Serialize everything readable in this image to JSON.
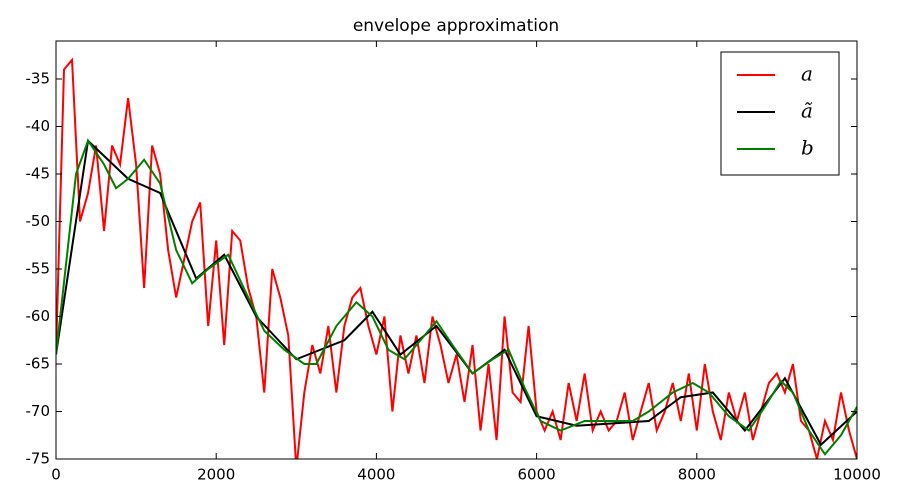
{
  "chart_data": {
    "type": "line",
    "title": "envelope approximation",
    "xlim": [
      0,
      10000
    ],
    "xticks": [
      0,
      2000,
      4000,
      6000,
      8000,
      10000
    ],
    "ylim": [
      -75,
      -31
    ],
    "yticks": [
      -75,
      -70,
      -65,
      -60,
      -55,
      -50,
      -45,
      -40,
      -35
    ],
    "legend": "upper right",
    "series": [
      {
        "name": "a",
        "color": "#ff0000",
        "x": [
          0,
          100,
          200,
          300,
          400,
          500,
          600,
          700,
          800,
          900,
          1000,
          1100,
          1200,
          1300,
          1400,
          1500,
          1600,
          1700,
          1800,
          1900,
          2000,
          2100,
          2200,
          2300,
          2400,
          2500,
          2600,
          2700,
          2800,
          2900,
          3000,
          3100,
          3200,
          3300,
          3400,
          3500,
          3600,
          3700,
          3800,
          3900,
          4000,
          4100,
          4200,
          4300,
          4400,
          4500,
          4600,
          4700,
          4800,
          4900,
          5000,
          5100,
          5200,
          5300,
          5400,
          5500,
          5600,
          5700,
          5800,
          5900,
          6000,
          6100,
          6200,
          6300,
          6400,
          6500,
          6600,
          6700,
          6800,
          6900,
          7000,
          7100,
          7200,
          7300,
          7400,
          7500,
          7600,
          7700,
          7800,
          7900,
          8000,
          8100,
          8200,
          8300,
          8400,
          8500,
          8600,
          8700,
          8800,
          8900,
          9000,
          9100,
          9200,
          9300,
          9400,
          9500,
          9600,
          9700,
          9800,
          9900,
          10000
        ],
        "values": [
          -64,
          -34,
          -33,
          -50,
          -47,
          -42,
          -51,
          -42,
          -44,
          -37,
          -44,
          -57,
          -42,
          -45,
          -53,
          -58,
          -54,
          -50,
          -48,
          -61,
          -52,
          -63,
          -51,
          -52,
          -57,
          -60,
          -68,
          -55,
          -58,
          -62,
          -76,
          -68,
          -63,
          -66,
          -61,
          -68,
          -61,
          -58,
          -57,
          -61,
          -64,
          -60,
          -70,
          -62,
          -66,
          -62,
          -67,
          -60,
          -63,
          -67,
          -64,
          -69,
          -63,
          -72,
          -65,
          -73,
          -60,
          -68,
          -69,
          -61,
          -70,
          -72,
          -70,
          -73,
          -67,
          -71,
          -66,
          -72,
          -70,
          -72,
          -71,
          -68,
          -73,
          -70,
          -67,
          -72,
          -70,
          -67,
          -71,
          -66,
          -72,
          -65,
          -70,
          -73,
          -68,
          -71,
          -68,
          -73,
          -70,
          -67,
          -66,
          -68,
          -65,
          -71,
          -72,
          -75,
          -71,
          -73,
          -68,
          -72,
          -75
        ]
      },
      {
        "name": "ã",
        "color": "#000000",
        "x": [
          0,
          400,
          900,
          1300,
          1750,
          2100,
          2500,
          3000,
          3600,
          3950,
          4300,
          4750,
          5200,
          5600,
          6000,
          6500,
          7400,
          7800,
          8200,
          8600,
          9100,
          9550,
          10000
        ],
        "values": [
          -64,
          -41.5,
          -45.5,
          -47,
          -56,
          -53.5,
          -60,
          -64.5,
          -62.5,
          -59.5,
          -64,
          -61,
          -66,
          -63.5,
          -70.5,
          -71.5,
          -71,
          -68.5,
          -68,
          -72,
          -66.5,
          -73.5,
          -70
        ]
      },
      {
        "name": "b",
        "color": "#008000",
        "x": [
          0,
          250,
          400,
          600,
          750,
          900,
          1100,
          1300,
          1500,
          1700,
          1900,
          2150,
          2400,
          2600,
          2850,
          3100,
          3250,
          3500,
          3750,
          3950,
          4150,
          4350,
          4550,
          4750,
          4950,
          5200,
          5450,
          5650,
          5850,
          6050,
          6300,
          6600,
          6900,
          7200,
          7400,
          7700,
          7950,
          8150,
          8400,
          8650,
          8850,
          9050,
          9200,
          9400,
          9600,
          9800,
          10000
        ],
        "values": [
          -64,
          -45,
          -41.5,
          -44,
          -46.5,
          -45.5,
          -43.5,
          -46,
          -53,
          -56.5,
          -55,
          -53.5,
          -58,
          -61.5,
          -63.5,
          -65,
          -65,
          -61,
          -58.5,
          -60,
          -63.5,
          -64.5,
          -62.5,
          -60.5,
          -63,
          -66,
          -64.5,
          -63.5,
          -67.5,
          -71,
          -72,
          -71,
          -71,
          -71,
          -70,
          -68,
          -67,
          -68,
          -70.5,
          -72,
          -69.5,
          -66.8,
          -68,
          -72,
          -74.5,
          -72.5,
          -69.5
        ]
      }
    ]
  }
}
